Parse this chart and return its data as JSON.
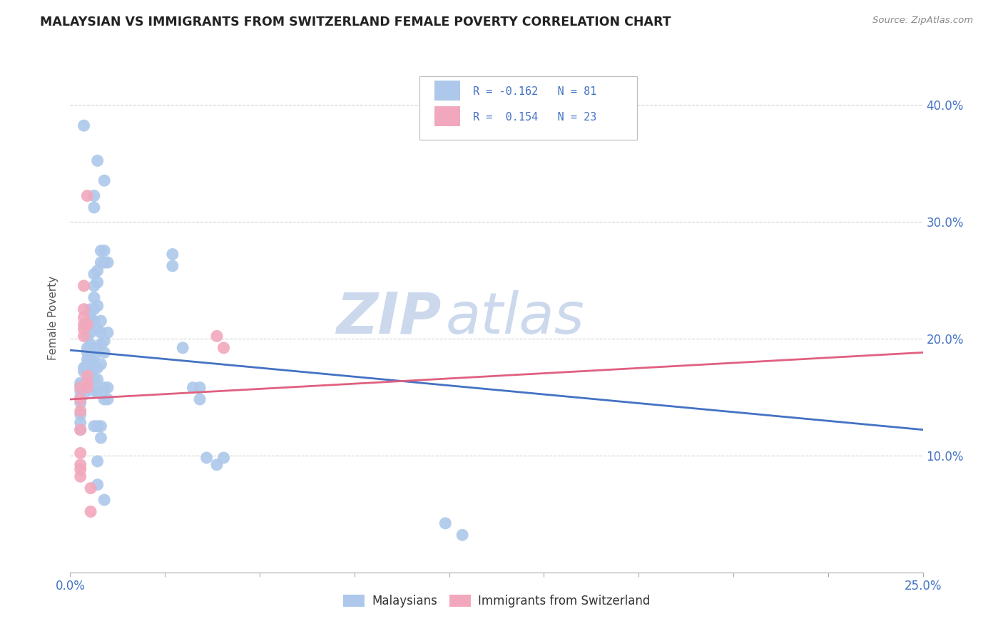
{
  "title": "MALAYSIAN VS IMMIGRANTS FROM SWITZERLAND FEMALE POVERTY CORRELATION CHART",
  "source": "Source: ZipAtlas.com",
  "ylabel": "Female Poverty",
  "ylabel_right_ticks": [
    "10.0%",
    "20.0%",
    "30.0%",
    "40.0%"
  ],
  "ylabel_right_vals": [
    0.1,
    0.2,
    0.3,
    0.4
  ],
  "xmin": 0.0,
  "xmax": 0.25,
  "ymin": 0.0,
  "ymax": 0.435,
  "legend_blue_label": "Malaysians",
  "legend_pink_label": "Immigrants from Switzerland",
  "blue_color": "#adc8ea",
  "pink_color": "#f2a8bc",
  "line_blue_color": "#4472c4",
  "line_pink_color": "#e06080",
  "watermark_zip": "ZIP",
  "watermark_atlas": "atlas",
  "watermark_color": "#ccd9ed",
  "blue_scatter": [
    [
      0.003,
      0.155
    ],
    [
      0.003,
      0.145
    ],
    [
      0.003,
      0.16
    ],
    [
      0.003,
      0.135
    ],
    [
      0.003,
      0.15
    ],
    [
      0.003,
      0.128
    ],
    [
      0.003,
      0.122
    ],
    [
      0.003,
      0.162
    ],
    [
      0.004,
      0.152
    ],
    [
      0.004,
      0.172
    ],
    [
      0.004,
      0.382
    ],
    [
      0.004,
      0.175
    ],
    [
      0.005,
      0.182
    ],
    [
      0.005,
      0.192
    ],
    [
      0.005,
      0.202
    ],
    [
      0.005,
      0.188
    ],
    [
      0.005,
      0.178
    ],
    [
      0.006,
      0.192
    ],
    [
      0.006,
      0.178
    ],
    [
      0.006,
      0.188
    ],
    [
      0.006,
      0.225
    ],
    [
      0.006,
      0.218
    ],
    [
      0.006,
      0.212
    ],
    [
      0.006,
      0.205
    ],
    [
      0.006,
      0.195
    ],
    [
      0.006,
      0.182
    ],
    [
      0.006,
      0.178
    ],
    [
      0.006,
      0.172
    ],
    [
      0.007,
      0.322
    ],
    [
      0.007,
      0.312
    ],
    [
      0.007,
      0.255
    ],
    [
      0.007,
      0.245
    ],
    [
      0.007,
      0.235
    ],
    [
      0.007,
      0.225
    ],
    [
      0.007,
      0.215
    ],
    [
      0.007,
      0.185
    ],
    [
      0.007,
      0.175
    ],
    [
      0.007,
      0.165
    ],
    [
      0.007,
      0.155
    ],
    [
      0.007,
      0.125
    ],
    [
      0.008,
      0.352
    ],
    [
      0.008,
      0.258
    ],
    [
      0.008,
      0.248
    ],
    [
      0.008,
      0.228
    ],
    [
      0.008,
      0.208
    ],
    [
      0.008,
      0.192
    ],
    [
      0.008,
      0.175
    ],
    [
      0.008,
      0.165
    ],
    [
      0.008,
      0.155
    ],
    [
      0.008,
      0.125
    ],
    [
      0.008,
      0.095
    ],
    [
      0.008,
      0.075
    ],
    [
      0.009,
      0.275
    ],
    [
      0.009,
      0.265
    ],
    [
      0.009,
      0.215
    ],
    [
      0.009,
      0.205
    ],
    [
      0.009,
      0.195
    ],
    [
      0.009,
      0.178
    ],
    [
      0.009,
      0.125
    ],
    [
      0.009,
      0.115
    ],
    [
      0.01,
      0.335
    ],
    [
      0.01,
      0.275
    ],
    [
      0.01,
      0.265
    ],
    [
      0.01,
      0.198
    ],
    [
      0.01,
      0.188
    ],
    [
      0.01,
      0.158
    ],
    [
      0.01,
      0.148
    ],
    [
      0.01,
      0.062
    ],
    [
      0.011,
      0.265
    ],
    [
      0.011,
      0.205
    ],
    [
      0.011,
      0.158
    ],
    [
      0.011,
      0.148
    ],
    [
      0.03,
      0.272
    ],
    [
      0.03,
      0.262
    ],
    [
      0.033,
      0.192
    ],
    [
      0.036,
      0.158
    ],
    [
      0.038,
      0.158
    ],
    [
      0.038,
      0.148
    ],
    [
      0.04,
      0.098
    ],
    [
      0.043,
      0.092
    ],
    [
      0.045,
      0.098
    ],
    [
      0.11,
      0.042
    ],
    [
      0.115,
      0.032
    ]
  ],
  "pink_scatter": [
    [
      0.003,
      0.158
    ],
    [
      0.003,
      0.148
    ],
    [
      0.003,
      0.138
    ],
    [
      0.003,
      0.122
    ],
    [
      0.003,
      0.102
    ],
    [
      0.003,
      0.092
    ],
    [
      0.003,
      0.088
    ],
    [
      0.003,
      0.082
    ],
    [
      0.004,
      0.245
    ],
    [
      0.004,
      0.225
    ],
    [
      0.004,
      0.218
    ],
    [
      0.004,
      0.212
    ],
    [
      0.004,
      0.208
    ],
    [
      0.004,
      0.202
    ],
    [
      0.005,
      0.322
    ],
    [
      0.005,
      0.212
    ],
    [
      0.005,
      0.168
    ],
    [
      0.005,
      0.162
    ],
    [
      0.005,
      0.158
    ],
    [
      0.006,
      0.072
    ],
    [
      0.006,
      0.052
    ],
    [
      0.043,
      0.202
    ],
    [
      0.045,
      0.192
    ]
  ],
  "blue_line_x": [
    0.0,
    0.25
  ],
  "blue_line_y": [
    0.19,
    0.122
  ],
  "pink_line_x": [
    0.0,
    0.25
  ],
  "pink_line_y": [
    0.148,
    0.188
  ]
}
